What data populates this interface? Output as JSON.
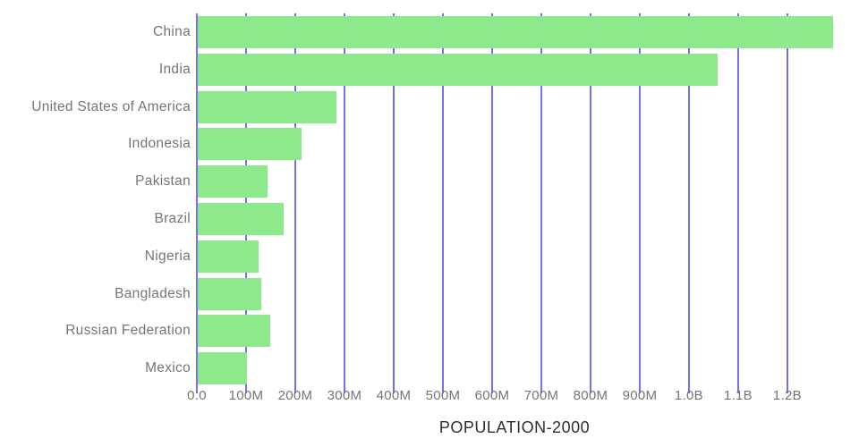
{
  "chart_data": {
    "type": "bar",
    "orientation": "horizontal",
    "title": "POPULATION-2000",
    "categories": [
      "China",
      "India",
      "United States of America",
      "Indonesia",
      "Pakistan",
      "Brazil",
      "Nigeria",
      "Bangladesh",
      "Russian Federation",
      "Mexico"
    ],
    "values": [
      1291000000,
      1056000000,
      282000000,
      211000000,
      142000000,
      175000000,
      124000000,
      129000000,
      147000000,
      100000000
    ],
    "xlim": [
      0,
      1291000000
    ],
    "x_ticks": [
      {
        "value": 0,
        "label": "0.0"
      },
      {
        "value": 100000000,
        "label": "100M"
      },
      {
        "value": 200000000,
        "label": "200M"
      },
      {
        "value": 300000000,
        "label": "300M"
      },
      {
        "value": 400000000,
        "label": "400M"
      },
      {
        "value": 500000000,
        "label": "500M"
      },
      {
        "value": 600000000,
        "label": "600M"
      },
      {
        "value": 700000000,
        "label": "700M"
      },
      {
        "value": 800000000,
        "label": "800M"
      },
      {
        "value": 900000000,
        "label": "900M"
      },
      {
        "value": 1000000000,
        "label": "1.0B"
      },
      {
        "value": 1100000000,
        "label": "1.1B"
      },
      {
        "value": 1200000000,
        "label": "1.2B"
      }
    ],
    "grid": true,
    "legend": false,
    "colors": {
      "bar": "#8ee98d",
      "grid": "#7470f0",
      "category_label": "#757575",
      "tick_label": "#757575",
      "title": "#2f2f2f",
      "background": "#ffffff"
    }
  }
}
